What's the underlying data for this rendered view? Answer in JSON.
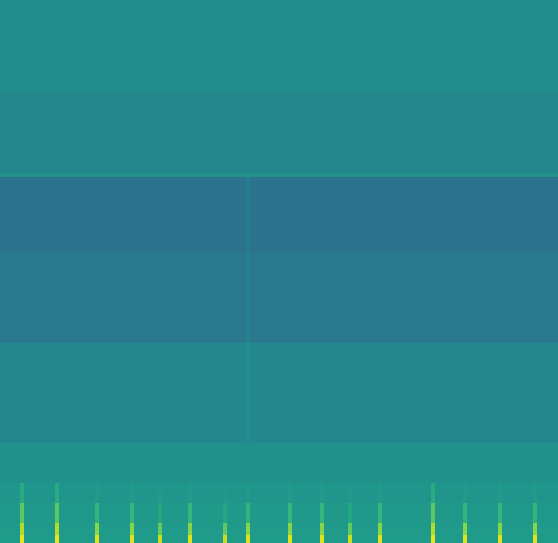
{
  "chart_data": {
    "type": "heatmap",
    "color": "Viridis",
    "tick_labels": false,
    "grid": false,
    "xlim": [
      0,
      558
    ],
    "ylim": [
      0,
      543
    ],
    "zlim": [
      0,
      1
    ],
    "x_edges": [
      0,
      20,
      24,
      55,
      59,
      95,
      99,
      130,
      134,
      158,
      162,
      188,
      192,
      223,
      227,
      246,
      250,
      288,
      292,
      320,
      324,
      348,
      352,
      378,
      382,
      431,
      435,
      463,
      467,
      498,
      502,
      533,
      537,
      558
    ],
    "y_edges": [
      0,
      8,
      20,
      40,
      60,
      100,
      200,
      290,
      366,
      370,
      450,
      543
    ],
    "z": [
      [
        0.55,
        0.97,
        0.55,
        0.97,
        0.55,
        0.95,
        0.55,
        0.95,
        0.55,
        0.92,
        0.55,
        0.95,
        0.55,
        0.92,
        0.55,
        0.95,
        0.55,
        0.95,
        0.55,
        0.95,
        0.55,
        0.92,
        0.55,
        0.95,
        0.55,
        0.97,
        0.55,
        0.95,
        0.55,
        0.95,
        0.55,
        0.95,
        0.55
      ],
      [
        0.54,
        0.88,
        0.54,
        0.88,
        0.54,
        0.82,
        0.54,
        0.82,
        0.54,
        0.76,
        0.54,
        0.82,
        0.54,
        0.76,
        0.54,
        0.82,
        0.54,
        0.82,
        0.54,
        0.82,
        0.54,
        0.76,
        0.54,
        0.82,
        0.54,
        0.88,
        0.54,
        0.82,
        0.54,
        0.82,
        0.54,
        0.82,
        0.54
      ],
      [
        0.53,
        0.75,
        0.53,
        0.75,
        0.53,
        0.66,
        0.53,
        0.66,
        0.53,
        0.6,
        0.53,
        0.66,
        0.53,
        0.6,
        0.53,
        0.66,
        0.53,
        0.66,
        0.53,
        0.66,
        0.53,
        0.6,
        0.53,
        0.66,
        0.53,
        0.75,
        0.53,
        0.66,
        0.53,
        0.66,
        0.53,
        0.66,
        0.53
      ],
      [
        0.52,
        0.62,
        0.52,
        0.62,
        0.52,
        0.55,
        0.52,
        0.55,
        0.52,
        0.53,
        0.52,
        0.55,
        0.52,
        0.53,
        0.52,
        0.55,
        0.52,
        0.55,
        0.52,
        0.55,
        0.52,
        0.53,
        0.52,
        0.55,
        0.52,
        0.62,
        0.52,
        0.55,
        0.52,
        0.55,
        0.52,
        0.55,
        0.52
      ],
      [
        0.5,
        0.5,
        0.5,
        0.5,
        0.5,
        0.5,
        0.5,
        0.5,
        0.5,
        0.5,
        0.5,
        0.5,
        0.5,
        0.5,
        0.5,
        0.5,
        0.5,
        0.5,
        0.5,
        0.5,
        0.5,
        0.5,
        0.5,
        0.5,
        0.5,
        0.5,
        0.5,
        0.5,
        0.5,
        0.5,
        0.5,
        0.5,
        0.5
      ],
      [
        0.46,
        0.46,
        0.46,
        0.46,
        0.46,
        0.46,
        0.46,
        0.46,
        0.46,
        0.46,
        0.46,
        0.46,
        0.46,
        0.46,
        0.46,
        0.49,
        0.46,
        0.46,
        0.46,
        0.46,
        0.46,
        0.46,
        0.46,
        0.46,
        0.46,
        0.46,
        0.46,
        0.46,
        0.46,
        0.46,
        0.46,
        0.46,
        0.46
      ],
      [
        0.4,
        0.4,
        0.4,
        0.4,
        0.4,
        0.4,
        0.4,
        0.4,
        0.4,
        0.4,
        0.4,
        0.4,
        0.4,
        0.4,
        0.4,
        0.44,
        0.4,
        0.4,
        0.4,
        0.4,
        0.4,
        0.4,
        0.4,
        0.4,
        0.4,
        0.4,
        0.4,
        0.4,
        0.4,
        0.4,
        0.4,
        0.4,
        0.4
      ],
      [
        0.38,
        0.38,
        0.38,
        0.38,
        0.38,
        0.38,
        0.38,
        0.38,
        0.38,
        0.38,
        0.38,
        0.38,
        0.38,
        0.38,
        0.38,
        0.41,
        0.38,
        0.38,
        0.38,
        0.38,
        0.38,
        0.38,
        0.38,
        0.38,
        0.38,
        0.38,
        0.38,
        0.38,
        0.38,
        0.38,
        0.38,
        0.38,
        0.38
      ],
      [
        0.5,
        0.5,
        0.5,
        0.5,
        0.5,
        0.5,
        0.5,
        0.5,
        0.5,
        0.5,
        0.5,
        0.5,
        0.5,
        0.5,
        0.5,
        0.5,
        0.5,
        0.5,
        0.5,
        0.5,
        0.5,
        0.5,
        0.5,
        0.5,
        0.5,
        0.5,
        0.5,
        0.5,
        0.5,
        0.5,
        0.5,
        0.5,
        0.5
      ],
      [
        0.46,
        0.46,
        0.46,
        0.46,
        0.46,
        0.46,
        0.46,
        0.46,
        0.46,
        0.46,
        0.46,
        0.46,
        0.46,
        0.46,
        0.46,
        0.46,
        0.46,
        0.46,
        0.46,
        0.46,
        0.46,
        0.46,
        0.46,
        0.46,
        0.46,
        0.46,
        0.46,
        0.46,
        0.46,
        0.46,
        0.46,
        0.46,
        0.46
      ],
      [
        0.48,
        0.48,
        0.48,
        0.48,
        0.48,
        0.48,
        0.48,
        0.48,
        0.48,
        0.48,
        0.48,
        0.48,
        0.48,
        0.48,
        0.48,
        0.48,
        0.48,
        0.48,
        0.48,
        0.48,
        0.48,
        0.48,
        0.48,
        0.48,
        0.48,
        0.48,
        0.48,
        0.48,
        0.48,
        0.48,
        0.48,
        0.48,
        0.48
      ]
    ]
  }
}
